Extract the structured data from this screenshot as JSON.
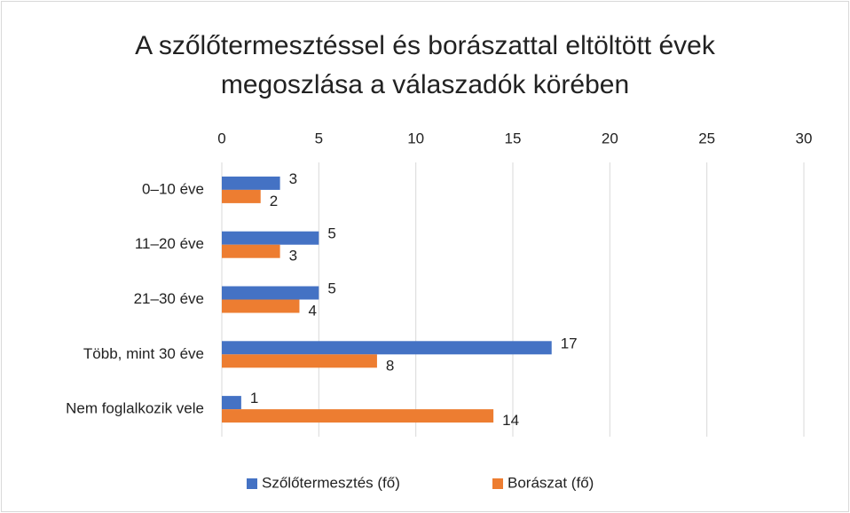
{
  "chart_data": {
    "type": "bar",
    "orientation": "horizontal",
    "title": "A szőlőtermesztéssel és borászattal eltöltött évek megoszlása a válaszadók körében",
    "categories": [
      "0–10 éve",
      "11–20 éve",
      "21–30 éve",
      "Több, mint 30 éve",
      "Nem foglalkozik vele"
    ],
    "series": [
      {
        "name": "Szőlőtermesztés (fő)",
        "color": "#4472c4",
        "values": [
          3,
          5,
          5,
          17,
          1
        ]
      },
      {
        "name": "Borászat (fő)",
        "color": "#ed7d31",
        "values": [
          2,
          3,
          4,
          8,
          14
        ]
      }
    ],
    "xlim": [
      0,
      30
    ],
    "xticks": [
      0,
      5,
      10,
      15,
      20,
      25,
      30
    ],
    "grid": true,
    "legend": "bottom"
  }
}
